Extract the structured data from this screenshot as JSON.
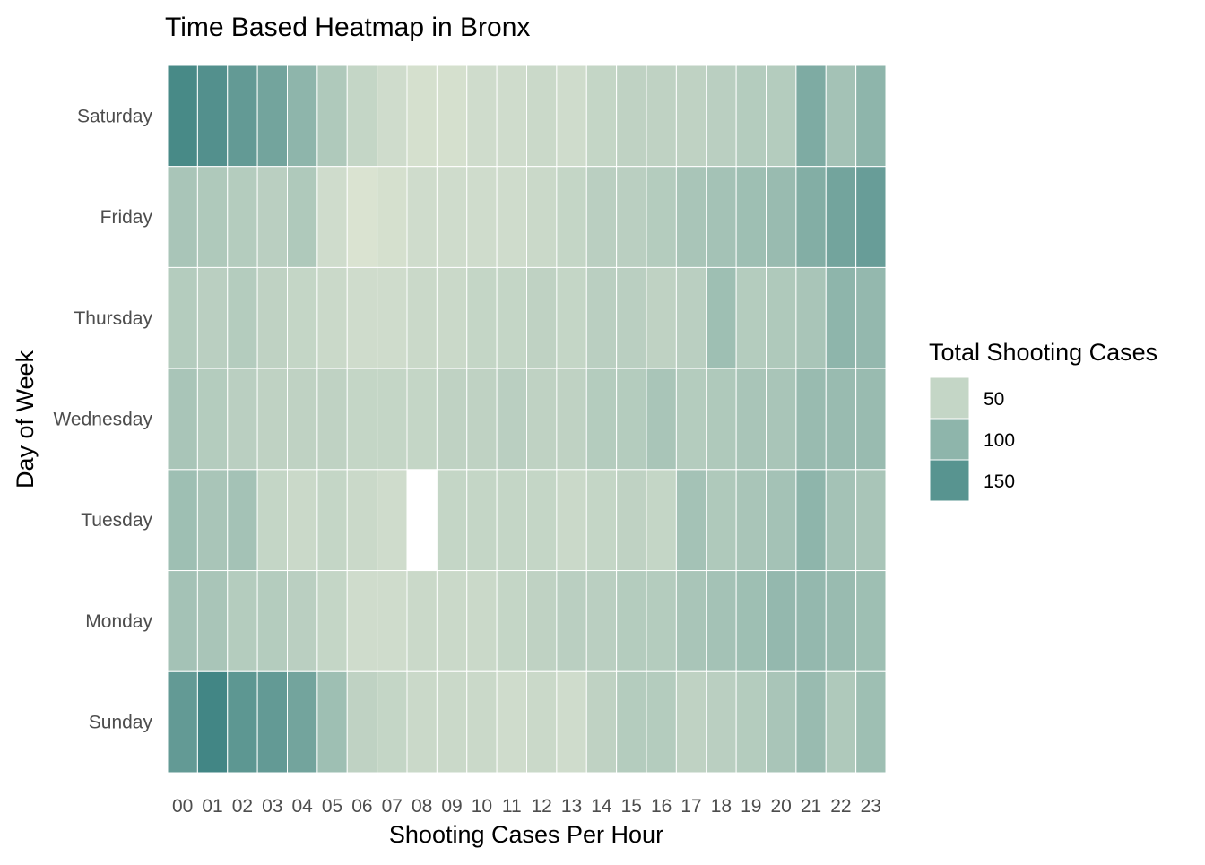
{
  "chart_data": {
    "type": "heatmap",
    "title": "Time Based Heatmap in Bronx",
    "xlabel": "Shooting Cases Per Hour",
    "ylabel": "Day of Week",
    "x_categories": [
      "00",
      "01",
      "02",
      "03",
      "04",
      "05",
      "06",
      "07",
      "08",
      "09",
      "10",
      "11",
      "12",
      "13",
      "14",
      "15",
      "16",
      "17",
      "18",
      "19",
      "20",
      "21",
      "22",
      "23"
    ],
    "y_categories": [
      "Saturday",
      "Friday",
      "Thursday",
      "Wednesday",
      "Tuesday",
      "Monday",
      "Sunday"
    ],
    "values": [
      [
        165,
        155,
        140,
        125,
        100,
        70,
        50,
        40,
        35,
        35,
        40,
        40,
        45,
        40,
        50,
        55,
        55,
        55,
        60,
        65,
        65,
        115,
        80,
        100
      ],
      [
        75,
        70,
        65,
        60,
        70,
        40,
        30,
        35,
        40,
        40,
        40,
        40,
        45,
        50,
        60,
        60,
        65,
        75,
        80,
        85,
        90,
        110,
        125,
        135
      ],
      [
        65,
        60,
        65,
        55,
        50,
        45,
        40,
        40,
        45,
        45,
        50,
        50,
        55,
        50,
        60,
        60,
        55,
        60,
        85,
        65,
        70,
        75,
        100,
        95
      ],
      [
        75,
        65,
        60,
        55,
        55,
        55,
        50,
        50,
        50,
        55,
        55,
        60,
        55,
        55,
        65,
        65,
        75,
        65,
        70,
        75,
        75,
        90,
        90,
        90
      ],
      [
        85,
        75,
        80,
        50,
        45,
        50,
        45,
        40,
        null,
        50,
        50,
        50,
        50,
        45,
        50,
        55,
        50,
        80,
        70,
        75,
        80,
        100,
        80,
        75
      ],
      [
        80,
        75,
        65,
        65,
        60,
        50,
        40,
        40,
        45,
        45,
        45,
        50,
        55,
        60,
        60,
        65,
        65,
        75,
        80,
        85,
        95,
        95,
        90,
        85
      ],
      [
        140,
        170,
        145,
        140,
        125,
        85,
        55,
        50,
        45,
        45,
        45,
        40,
        45,
        40,
        55,
        65,
        65,
        55,
        60,
        65,
        75,
        90,
        70,
        85
      ]
    ],
    "legend": {
      "title": "Total Shooting Cases",
      "entries": [
        {
          "label": "50",
          "value": 50
        },
        {
          "label": "100",
          "value": 100
        },
        {
          "label": "150",
          "value": 150
        }
      ],
      "placement": "right"
    },
    "color_low": "#dae3d1",
    "color_high": "#3d8382",
    "value_range": [
      30,
      175
    ],
    "missing_color": "#ffffff",
    "grid": false
  }
}
